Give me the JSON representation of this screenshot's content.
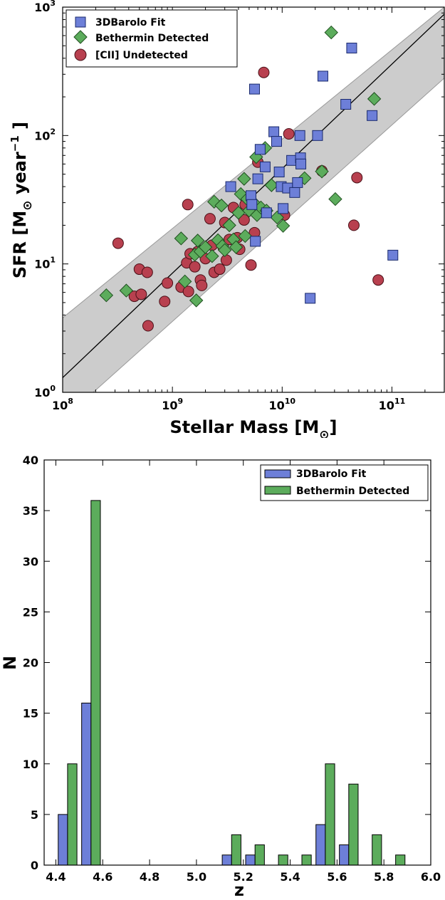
{
  "colors": {
    "blue": "#6d7fd8",
    "green": "#5cac5c",
    "red": "#b8404f",
    "band": "#cccccc"
  },
  "chart_data": [
    {
      "type": "scatter",
      "xscale": "log",
      "yscale": "log",
      "xlim": [
        100000000.0,
        300000000000.0
      ],
      "ylim": [
        1,
        1000
      ],
      "xlabel_main": "Stellar Mass [M",
      "xlabel_sub": "⊙",
      "xlabel_close": "]",
      "ylabel_main": "SFR [M",
      "ylabel_sub": "⊙",
      "ylabel_mid": " year",
      "ylabel_sup": "−1",
      "ylabel_close": " ]",
      "xticks": [
        {
          "value": 100000000.0,
          "base": "10",
          "exp": "8"
        },
        {
          "value": 1000000000.0,
          "base": "10",
          "exp": "9"
        },
        {
          "value": 10000000000.0,
          "base": "10",
          "exp": "10"
        },
        {
          "value": 100000000000.0,
          "base": "10",
          "exp": "11"
        }
      ],
      "yticks": [
        {
          "value": 1,
          "base": "10",
          "exp": "0"
        },
        {
          "value": 10,
          "base": "10",
          "exp": "1"
        },
        {
          "value": 100,
          "base": "10",
          "exp": "2"
        },
        {
          "value": 1000,
          "base": "10",
          "exp": "3"
        }
      ],
      "fit_line": [
        [
          100000000.0,
          1.3
        ],
        [
          300000000000.0,
          880
        ]
      ],
      "band_upper": [
        [
          100000000.0,
          3.8
        ],
        [
          300000000000.0,
          1000
        ]
      ],
      "band_lower": [
        [
          190000000.0,
          1
        ],
        [
          300000000000.0,
          280
        ]
      ],
      "legend_position": "top-left",
      "series": [
        {
          "name": "[CII] Undetected",
          "marker": "circle",
          "color": "#b8404f",
          "points": [
            [
              320000000.0,
              14.5
            ],
            [
              450000000.0,
              5.6
            ],
            [
              500000000.0,
              9.1
            ],
            [
              520000000.0,
              5.8
            ],
            [
              590000000.0,
              8.6
            ],
            [
              600000000.0,
              3.3
            ],
            [
              850000000.0,
              5.1
            ],
            [
              900000000.0,
              7.1
            ],
            [
              1200000000.0,
              6.6
            ],
            [
              1350000000.0,
              10.2
            ],
            [
              1380000000.0,
              29
            ],
            [
              1400000000.0,
              6.1
            ],
            [
              1450000000.0,
              12
            ],
            [
              1600000000.0,
              9.5
            ],
            [
              1700000000.0,
              12.5
            ],
            [
              1800000000.0,
              7.5
            ],
            [
              1850000000.0,
              6.8
            ],
            [
              2000000000.0,
              11
            ],
            [
              2200000000.0,
              22.5
            ],
            [
              2300000000.0,
              14
            ],
            [
              2400000000.0,
              8.6
            ],
            [
              2700000000.0,
              9.1
            ],
            [
              2900000000.0,
              13.5
            ],
            [
              3000000000.0,
              21
            ],
            [
              3100000000.0,
              10.7
            ],
            [
              3300000000.0,
              15.5
            ],
            [
              3600000000.0,
              27.5
            ],
            [
              3900000000.0,
              16
            ],
            [
              4100000000.0,
              13
            ],
            [
              4500000000.0,
              22
            ],
            [
              4600000000.0,
              29
            ],
            [
              5200000000.0,
              9.8
            ],
            [
              5600000000.0,
              17.5
            ],
            [
              6000000000.0,
              62
            ],
            [
              6800000000.0,
              310
            ],
            [
              10500000000.0,
              24
            ],
            [
              11500000000.0,
              103
            ],
            [
              23000000000.0,
              53
            ],
            [
              45000000000.0,
              20
            ],
            [
              48000000000.0,
              47
            ],
            [
              75000000000.0,
              7.5
            ]
          ]
        },
        {
          "name": "Bethermin Detected",
          "marker": "diamond",
          "color": "#5cac5c",
          "points": [
            [
              250000000.0,
              5.7
            ],
            [
              380000000.0,
              6.2
            ],
            [
              1200000000.0,
              15.8
            ],
            [
              1300000000.0,
              7.3
            ],
            [
              1600000000.0,
              11.8
            ],
            [
              1650000000.0,
              5.2
            ],
            [
              1700000000.0,
              15.2
            ],
            [
              1800000000.0,
              12.5
            ],
            [
              2000000000.0,
              13.5
            ],
            [
              2300000000.0,
              11.5
            ],
            [
              2400000000.0,
              30.5
            ],
            [
              2600000000.0,
              15.3
            ],
            [
              2800000000.0,
              28.5
            ],
            [
              2850000000.0,
              13.8
            ],
            [
              3000000000.0,
              12.8
            ],
            [
              3300000000.0,
              20
            ],
            [
              3600000000.0,
              15.5
            ],
            [
              3800000000.0,
              13.5
            ],
            [
              4000000000.0,
              25
            ],
            [
              4200000000.0,
              35
            ],
            [
              4500000000.0,
              46
            ],
            [
              4600000000.0,
              16.5
            ],
            [
              4800000000.0,
              32
            ],
            [
              5000000000.0,
              26
            ],
            [
              5500000000.0,
              30
            ],
            [
              5800000000.0,
              68
            ],
            [
              5900000000.0,
              24
            ],
            [
              6400000000.0,
              27.5
            ],
            [
              7000000000.0,
              80
            ],
            [
              7200000000.0,
              26
            ],
            [
              8000000000.0,
              41
            ],
            [
              9000000000.0,
              23
            ],
            [
              10200000000.0,
              19.8
            ],
            [
              16000000000.0,
              46.5
            ],
            [
              23000000000.0,
              52.5
            ],
            [
              28000000000.0,
              635
            ],
            [
              30500000000.0,
              32
            ],
            [
              69000000000.0,
              193
            ]
          ]
        },
        {
          "name": "3DBarolo Fit",
          "marker": "square",
          "color": "#6d7fd8",
          "points": [
            [
              3400000000.0,
              40
            ],
            [
              5200000000.0,
              34
            ],
            [
              5300000000.0,
              29
            ],
            [
              5600000000.0,
              230
            ],
            [
              5700000000.0,
              15
            ],
            [
              6000000000.0,
              46
            ],
            [
              6300000000.0,
              78
            ],
            [
              7000000000.0,
              57
            ],
            [
              7200000000.0,
              25
            ],
            [
              8400000000.0,
              107
            ],
            [
              8900000000.0,
              90
            ],
            [
              9400000000.0,
              52
            ],
            [
              9800000000.0,
              40
            ],
            [
              10200000000.0,
              27
            ],
            [
              11200000000.0,
              39
            ],
            [
              12200000000.0,
              64
            ],
            [
              13000000000.0,
              36
            ],
            [
              13800000000.0,
              43
            ],
            [
              14500000000.0,
              100
            ],
            [
              14700000000.0,
              67
            ],
            [
              14800000000.0,
              60
            ],
            [
              18000000000.0,
              5.4
            ],
            [
              21000000000.0,
              100
            ],
            [
              23500000000.0,
              290
            ],
            [
              38000000000.0,
              175
            ],
            [
              43000000000.0,
              480
            ],
            [
              66000000000.0,
              143
            ],
            [
              102000000000.0,
              11.7
            ]
          ]
        }
      ]
    },
    {
      "type": "bar",
      "xlim": [
        4.35,
        6.0
      ],
      "ylim": [
        0,
        40
      ],
      "xlabel": "z",
      "ylabel": "N",
      "xticks": [
        {
          "value": 4.4,
          "label": "4.4"
        },
        {
          "value": 4.6,
          "label": "4.6"
        },
        {
          "value": 4.8,
          "label": "4.8"
        },
        {
          "value": 5.0,
          "label": "5.0"
        },
        {
          "value": 5.2,
          "label": "5.2"
        },
        {
          "value": 5.4,
          "label": "5.4"
        },
        {
          "value": 5.6,
          "label": "5.6"
        },
        {
          "value": 5.8,
          "label": "5.8"
        },
        {
          "value": 6.0,
          "label": "6.0"
        }
      ],
      "yticks": [
        {
          "value": 0,
          "label": "0"
        },
        {
          "value": 5,
          "label": "5"
        },
        {
          "value": 10,
          "label": "10"
        },
        {
          "value": 15,
          "label": "15"
        },
        {
          "value": 20,
          "label": "20"
        },
        {
          "value": 25,
          "label": "25"
        },
        {
          "value": 30,
          "label": "30"
        },
        {
          "value": 35,
          "label": "35"
        },
        {
          "value": 40,
          "label": "40"
        }
      ],
      "bar_width": 0.04,
      "legend_position": "top-right",
      "series": [
        {
          "name": "3DBarolo Fit",
          "color": "#6d7fd8",
          "bars": [
            [
              4.43,
              5
            ],
            [
              4.53,
              16
            ],
            [
              5.13,
              1
            ],
            [
              5.23,
              1
            ],
            [
              5.53,
              4
            ],
            [
              5.63,
              2
            ]
          ]
        },
        {
          "name": "Bethermin Detected",
          "color": "#5cac5c",
          "bars": [
            [
              4.47,
              10
            ],
            [
              4.57,
              36
            ],
            [
              5.17,
              3
            ],
            [
              5.27,
              2
            ],
            [
              5.37,
              1
            ],
            [
              5.47,
              1
            ],
            [
              5.57,
              10
            ],
            [
              5.67,
              8
            ],
            [
              5.77,
              3
            ],
            [
              5.87,
              1
            ]
          ]
        }
      ]
    }
  ]
}
